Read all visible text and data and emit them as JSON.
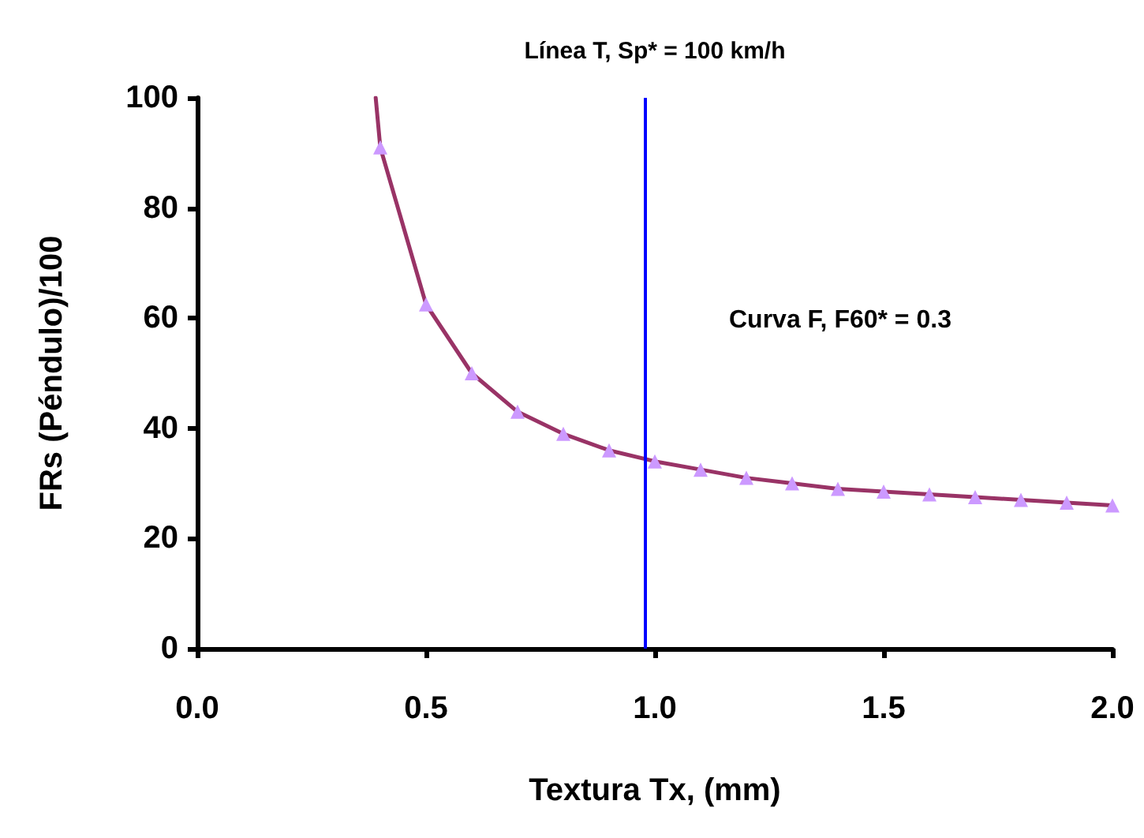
{
  "chart_data": {
    "type": "line",
    "title": "Línea T, Sp* = 100 km/h",
    "xlabel": "Textura Tx, (mm)",
    "ylabel": "FRs (Péndulo)/100",
    "annotations": [
      "Curva F, F60* = 0.3"
    ],
    "series": [
      {
        "color": "#993366",
        "marker": "triangle",
        "x": [
          0.4,
          0.5,
          0.6,
          0.7,
          0.8,
          0.9,
          1.0,
          1.1,
          1.2,
          1.3,
          1.4,
          1.5,
          1.6,
          1.7,
          1.8,
          1.9,
          2.0
        ],
        "values": [
          91,
          62.5,
          50,
          43,
          39,
          36,
          34,
          32.5,
          31,
          30,
          29,
          28.5,
          28,
          27.5,
          27,
          26.5,
          26
        ]
      },
      {
        "color": "#993366",
        "marker": "none",
        "x": [
          0.39,
          0.4
        ],
        "values": [
          100,
          91
        ]
      }
    ],
    "ref_lines": [
      {
        "axis": "x",
        "value": 0.98,
        "color": "#0000ff"
      }
    ],
    "xlim": [
      0,
      2
    ],
    "xticks": [
      {
        "value": 0,
        "label": "0.0"
      },
      {
        "value": 0.5,
        "label": "0.5"
      },
      {
        "value": 1,
        "label": "1.0"
      },
      {
        "value": 1.5,
        "label": "1.5"
      },
      {
        "value": 2,
        "label": "2.0"
      }
    ],
    "ylim": [
      0,
      100
    ],
    "yticks": [
      0,
      20,
      40,
      60,
      80,
      100
    ],
    "grid": false,
    "line_style": "solid"
  }
}
